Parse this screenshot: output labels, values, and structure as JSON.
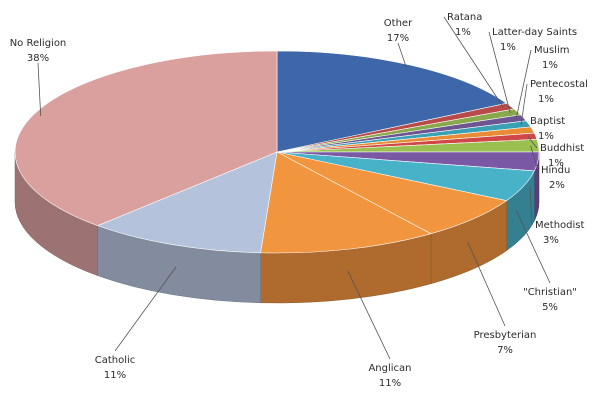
{
  "chart_data": {
    "type": "pie",
    "style": "3d",
    "legend": "none",
    "slices": [
      {
        "label": "Other",
        "value": 17,
        "text": "17%",
        "color": "#3d67a8"
      },
      {
        "label": "Ratana",
        "value": 1,
        "text": "1%",
        "color": "#b84a49"
      },
      {
        "label": "Latter-day Saints",
        "value": 1,
        "text": "1%",
        "color": "#88a84b"
      },
      {
        "label": "Muslim",
        "value": 1,
        "text": "1%",
        "color": "#6d5592"
      },
      {
        "label": "Pentecostal",
        "value": 1,
        "text": "1%",
        "color": "#3aa0b4"
      },
      {
        "label": "Baptist",
        "value": 1,
        "text": "1%",
        "color": "#e98b34"
      },
      {
        "label": "Buddhist",
        "value": 1,
        "text": "1%",
        "color": "#d04846"
      },
      {
        "label": "Hindu",
        "value": 2,
        "text": "2%",
        "color": "#9ac051"
      },
      {
        "label": "Methodist",
        "value": 3,
        "text": "3%",
        "color": "#7a58a6"
      },
      {
        "label": "\"Christian\"",
        "value": 5,
        "text": "5%",
        "color": "#48b2c9"
      },
      {
        "label": "Presbyterian",
        "value": 7,
        "text": "7%",
        "color": "#f2953f"
      },
      {
        "label": "Anglican",
        "value": 11,
        "text": "11%",
        "color": "#f2953f"
      },
      {
        "label": "Catholic",
        "value": 11,
        "text": "11%",
        "color": "#b4c2dc"
      },
      {
        "label": "No Religion",
        "value": 38,
        "text": "38%",
        "color": "#d9a09e"
      }
    ]
  }
}
